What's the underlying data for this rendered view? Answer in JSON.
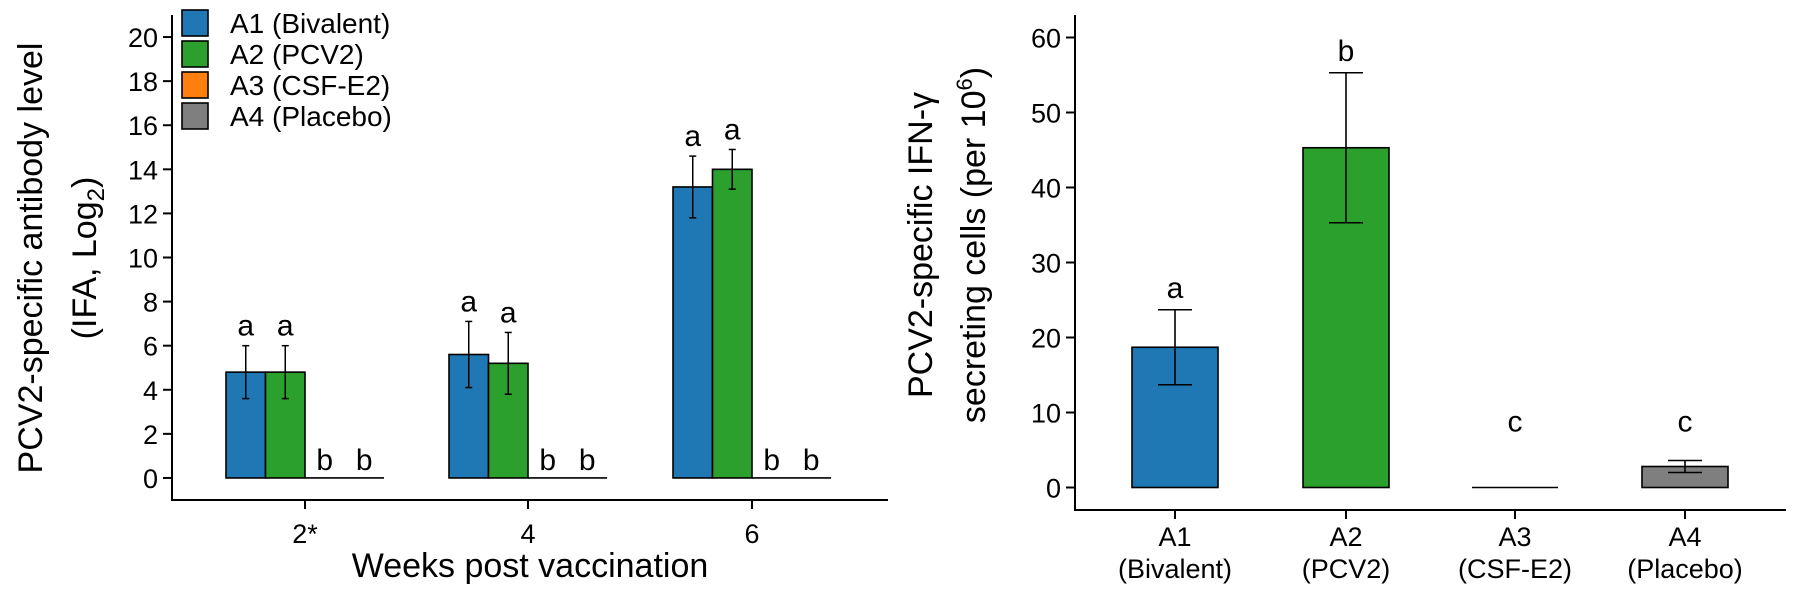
{
  "chart_data": [
    {
      "type": "bar",
      "categories": [
        "2*",
        "4",
        "6"
      ],
      "series": [
        {
          "name": "A1 (Bivalent)",
          "color": "#1f77b4",
          "values": [
            4.8,
            5.6,
            13.2
          ],
          "errors": [
            1.2,
            1.5,
            1.4
          ],
          "letters": [
            "a",
            "a",
            "a"
          ]
        },
        {
          "name": "A2 (PCV2)",
          "color": "#2ca02c",
          "values": [
            4.8,
            5.2,
            14.0
          ],
          "errors": [
            1.2,
            1.4,
            0.9
          ],
          "letters": [
            "a",
            "a",
            "a"
          ]
        },
        {
          "name": "A3 (CSF-E2)",
          "color": "#ff7f0e",
          "values": [
            0,
            0,
            0
          ],
          "errors": [
            0,
            0,
            0
          ],
          "letters": [
            "b",
            "b",
            "b"
          ]
        },
        {
          "name": "A4 (Placebo)",
          "color": "#7f7f7f",
          "values": [
            0,
            0,
            0
          ],
          "errors": [
            0,
            0,
            0
          ],
          "letters": [
            "b",
            "b",
            "b"
          ]
        }
      ],
      "xlabel": "Weeks post vaccination",
      "ylabel_line1": "PCV2-specific antibody level",
      "ylabel_line2_main": "(IFA, Log",
      "ylabel_line2_sub": "2",
      "ylabel_line2_end": ")",
      "ylim": [
        -1,
        21
      ],
      "yticks": [
        0,
        2,
        4,
        6,
        8,
        10,
        12,
        14,
        16,
        18,
        20
      ],
      "legend_position": "top-left",
      "grid": false
    },
    {
      "type": "bar",
      "categories": [
        {
          "line1": "A1",
          "line2": "(Bivalent)"
        },
        {
          "line1": "A2",
          "line2": "(PCV2)"
        },
        {
          "line1": "A3",
          "line2": "(CSF-E2)"
        },
        {
          "line1": "A4",
          "line2": "(Placebo)"
        }
      ],
      "values": [
        18.7,
        45.3,
        0,
        2.8
      ],
      "errors": [
        5.0,
        10.0,
        0,
        0.8
      ],
      "colors": [
        "#1f77b4",
        "#2ca02c",
        "#ff7f0e",
        "#7f7f7f"
      ],
      "letters": [
        "a",
        "b",
        "c",
        "c"
      ],
      "ylabel_line1": "PCV2-specific IFN-γ",
      "ylabel_line2_main": "secreting cells (per 10",
      "ylabel_line2_sup": "6",
      "ylabel_line2_end": ")",
      "ylim": [
        -3,
        63
      ],
      "yticks": [
        0,
        10,
        20,
        30,
        40,
        50,
        60
      ],
      "grid": false
    }
  ]
}
